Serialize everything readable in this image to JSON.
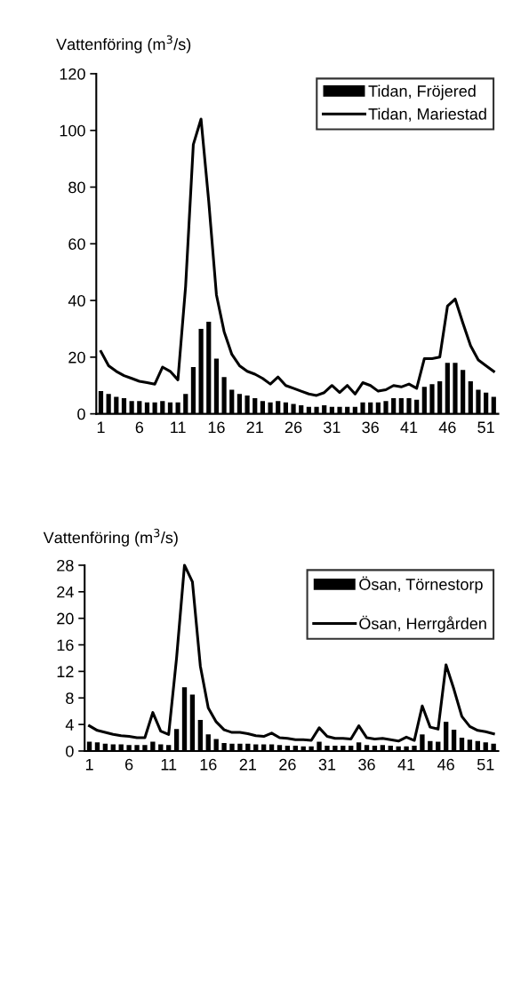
{
  "chart_data": [
    {
      "type": "bar",
      "ylabel": "Vattenföring (m$^{3}$/s)",
      "categories": [
        "1",
        null,
        null,
        null,
        null,
        "6",
        null,
        null,
        null,
        null,
        "11",
        null,
        null,
        null,
        null,
        "16",
        null,
        null,
        null,
        null,
        "21",
        null,
        null,
        null,
        null,
        "26",
        null,
        null,
        null,
        null,
        "31",
        null,
        null,
        null,
        null,
        "36",
        null,
        null,
        null,
        null,
        "41",
        null,
        null,
        null,
        null,
        "46",
        null,
        null,
        null,
        null,
        "51",
        null
      ],
      "ylim": [
        0,
        120
      ],
      "yticks": [
        0,
        20,
        40,
        60,
        80,
        100,
        120
      ],
      "legend": "top right",
      "grid": false,
      "series": [
        {
          "name": "Tidan, Fröjered",
          "color": "#000000",
          "values": [
            8,
            7,
            6,
            5.5,
            4.5,
            4.5,
            4,
            4,
            4.5,
            4,
            4,
            7,
            16.5,
            30,
            32.5,
            19.5,
            13,
            8.5,
            7,
            6.5,
            5.5,
            4.5,
            4,
            4.5,
            4,
            3.5,
            3,
            2.5,
            2.5,
            3,
            2.5,
            2.5,
            2.5,
            2.5,
            4,
            4,
            4,
            4.5,
            5.5,
            5.5,
            5.5,
            5,
            9.5,
            10.5,
            11.5,
            18,
            18,
            15.5,
            11.5,
            8.5,
            7.5,
            6
          ]
        },
        {
          "name": "Tidan, Mariestad",
          "type": "line",
          "color": "#000000",
          "values": [
            22,
            17,
            15,
            13.5,
            12.5,
            11.5,
            11,
            10.5,
            16.5,
            15,
            12,
            45,
            95,
            104,
            75,
            42,
            29,
            21,
            17,
            15,
            14,
            12.5,
            10.5,
            13,
            10,
            9,
            8,
            7,
            6.5,
            7.5,
            10,
            7.5,
            10,
            7,
            11,
            10,
            8,
            8.5,
            10,
            9.5,
            10.5,
            9,
            19.5,
            19.5,
            20,
            38,
            40.5,
            32,
            24,
            19,
            17,
            15
          ]
        }
      ]
    },
    {
      "type": "bar",
      "ylabel": "Vattenföring (m$^{3}$/s)",
      "categories": [
        "1",
        null,
        null,
        null,
        null,
        "6",
        null,
        null,
        null,
        null,
        "11",
        null,
        null,
        null,
        null,
        "16",
        null,
        null,
        null,
        null,
        "21",
        null,
        null,
        null,
        null,
        "26",
        null,
        null,
        null,
        null,
        "31",
        null,
        null,
        null,
        null,
        "36",
        null,
        null,
        null,
        null,
        "41",
        null,
        null,
        null,
        null,
        "46",
        null,
        null,
        null,
        null,
        "51",
        null
      ],
      "ylim": [
        0,
        28
      ],
      "yticks": [
        0,
        4,
        8,
        12,
        16,
        20,
        24,
        28
      ],
      "legend": "top right",
      "grid": false,
      "series": [
        {
          "name": "Ösan, Törnestorp",
          "color": "#000000",
          "values": [
            1.4,
            1.3,
            1.1,
            1.0,
            1.0,
            0.9,
            0.9,
            0.9,
            1.4,
            1.0,
            0.9,
            3.3,
            9.6,
            8.5,
            4.7,
            2.5,
            1.8,
            1.2,
            1.1,
            1.1,
            1.1,
            1.0,
            1.0,
            1.0,
            0.9,
            0.8,
            0.8,
            0.7,
            0.7,
            1.4,
            0.8,
            0.8,
            0.8,
            0.8,
            1.3,
            0.9,
            0.8,
            0.9,
            0.8,
            0.7,
            0.7,
            0.8,
            2.5,
            1.5,
            1.4,
            4.4,
            3.2,
            2.0,
            1.7,
            1.5,
            1.3,
            1.1
          ]
        },
        {
          "name": "Ösan, Herrgården",
          "type": "line",
          "color": "#000000",
          "values": [
            3.8,
            3.1,
            2.8,
            2.5,
            2.3,
            2.2,
            2.0,
            2.0,
            5.8,
            3.0,
            2.5,
            14,
            28,
            25.5,
            12.8,
            6.5,
            4.4,
            3.2,
            2.8,
            2.8,
            2.6,
            2.3,
            2.2,
            2.7,
            2.0,
            1.9,
            1.7,
            1.7,
            1.6,
            3.5,
            2.2,
            1.9,
            1.9,
            1.8,
            3.8,
            2.0,
            1.8,
            1.9,
            1.7,
            1.5,
            2.1,
            1.6,
            6.8,
            3.6,
            3.3,
            13,
            9.3,
            5.2,
            3.7,
            3.1,
            2.9,
            2.6
          ]
        }
      ]
    }
  ]
}
